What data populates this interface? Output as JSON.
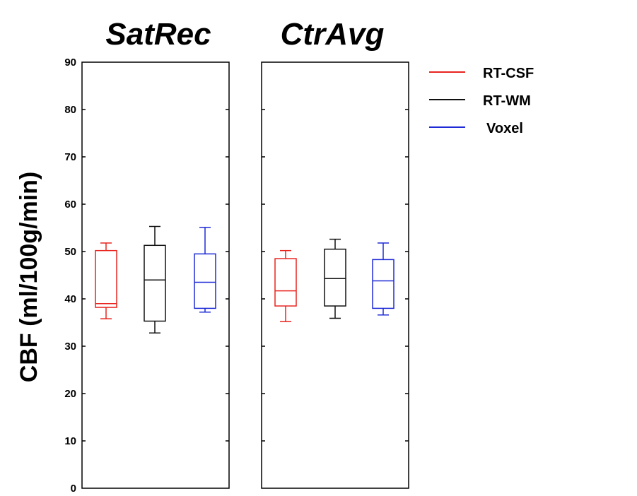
{
  "chart_data": {
    "type": "boxplot",
    "ylabel": "CBF (ml/100g/min)",
    "ylim": [
      0,
      90
    ],
    "yticks": [
      0,
      10,
      20,
      30,
      40,
      50,
      60,
      70,
      80,
      90
    ],
    "panels": [
      {
        "title": "SatRec",
        "boxes": [
          {
            "series": "RT-CSF",
            "whisker_low": 35.8,
            "q1": 38.2,
            "median": 39.0,
            "q3": 50.2,
            "whisker_high": 51.8
          },
          {
            "series": "RT-WM",
            "whisker_low": 32.8,
            "q1": 35.3,
            "median": 44.0,
            "q3": 51.3,
            "whisker_high": 55.3
          },
          {
            "series": "Voxel",
            "whisker_low": 37.2,
            "q1": 38.0,
            "median": 43.5,
            "q3": 49.5,
            "whisker_high": 55.1
          }
        ]
      },
      {
        "title": "CtrAvg",
        "boxes": [
          {
            "series": "RT-CSF",
            "whisker_low": 35.2,
            "q1": 38.5,
            "median": 41.7,
            "q3": 48.5,
            "whisker_high": 50.2
          },
          {
            "series": "RT-WM",
            "whisker_low": 35.9,
            "q1": 38.5,
            "median": 44.3,
            "q3": 50.5,
            "whisker_high": 52.6
          },
          {
            "series": "Voxel",
            "whisker_low": 36.6,
            "q1": 38.0,
            "median": 43.8,
            "q3": 48.3,
            "whisker_high": 51.8
          }
        ]
      }
    ],
    "legend": [
      {
        "label": "RT-CSF",
        "color": "#e8251f"
      },
      {
        "label": "RT-WM",
        "color": "#111111"
      },
      {
        "label": "Voxel",
        "color": "#1f2bd6"
      }
    ],
    "legend_position": "top-right"
  }
}
